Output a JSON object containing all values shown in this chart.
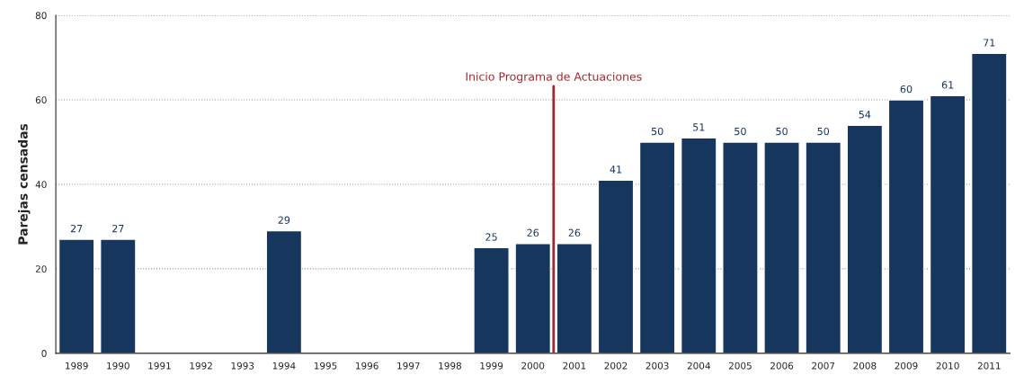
{
  "chart_data": {
    "type": "bar",
    "ylabel": "Parejas censadas",
    "x": [
      1989,
      1990,
      1991,
      1992,
      1993,
      1994,
      1995,
      1996,
      1997,
      1998,
      1999,
      2000,
      2001,
      2002,
      2003,
      2004,
      2005,
      2006,
      2007,
      2008,
      2009,
      2010,
      2011
    ],
    "values": [
      27,
      27,
      null,
      null,
      null,
      29,
      null,
      null,
      null,
      null,
      25,
      26,
      26,
      41,
      50,
      51,
      50,
      50,
      50,
      54,
      60,
      61,
      71
    ],
    "color": "#17365d",
    "xlim": [
      1988.5,
      2011.5
    ],
    "xticks": [
      1989,
      1990,
      1991,
      1992,
      1993,
      1994,
      1995,
      1996,
      1997,
      1998,
      1999,
      2000,
      2001,
      2002,
      2003,
      2004,
      2005,
      2006,
      2007,
      2008,
      2009,
      2010,
      2011
    ],
    "ylim": [
      0,
      80
    ],
    "yticks": [
      0,
      20,
      40,
      60,
      80
    ],
    "grid": "y",
    "data_labels": true,
    "ref_lines": [
      {
        "axis": "x",
        "value": 2000.5,
        "label": "Inicio Programa de Actuaciones",
        "color": "#a3272e"
      }
    ]
  }
}
